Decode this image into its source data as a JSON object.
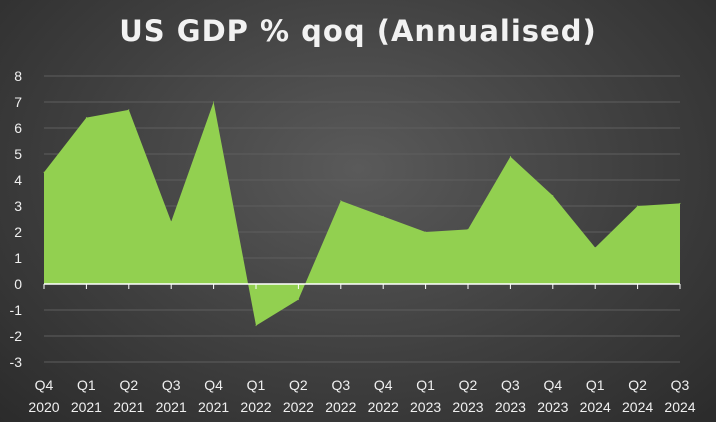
{
  "chart_data": {
    "type": "area",
    "title": "US GDP % qoq (Annualised)",
    "xlabel": "",
    "ylabel": "",
    "categories": [
      [
        "Q4",
        "2020"
      ],
      [
        "Q1",
        "2021"
      ],
      [
        "Q2",
        "2021"
      ],
      [
        "Q3",
        "2021"
      ],
      [
        "Q4",
        "2021"
      ],
      [
        "Q1",
        "2022"
      ],
      [
        "Q2",
        "2022"
      ],
      [
        "Q3",
        "2022"
      ],
      [
        "Q4",
        "2022"
      ],
      [
        "Q1",
        "2023"
      ],
      [
        "Q2",
        "2023"
      ],
      [
        "Q3",
        "2023"
      ],
      [
        "Q4",
        "2023"
      ],
      [
        "Q1",
        "2024"
      ],
      [
        "Q2",
        "2024"
      ],
      [
        "Q3",
        "2024"
      ]
    ],
    "values": [
      4.3,
      6.4,
      6.7,
      2.4,
      7.0,
      -1.6,
      -0.6,
      3.2,
      2.6,
      2.0,
      2.1,
      4.9,
      3.4,
      1.4,
      3.0,
      3.1
    ],
    "ylim": [
      -3,
      8
    ],
    "yticks": [
      -3,
      -2,
      -1,
      0,
      1,
      2,
      3,
      4,
      5,
      6,
      7,
      8
    ],
    "grid": true,
    "legend": "none",
    "colors": {
      "fill": "#92d050",
      "gridline": "#5e5e5e",
      "zero_line": "#ffffff",
      "text": "#f0f0f0"
    }
  }
}
